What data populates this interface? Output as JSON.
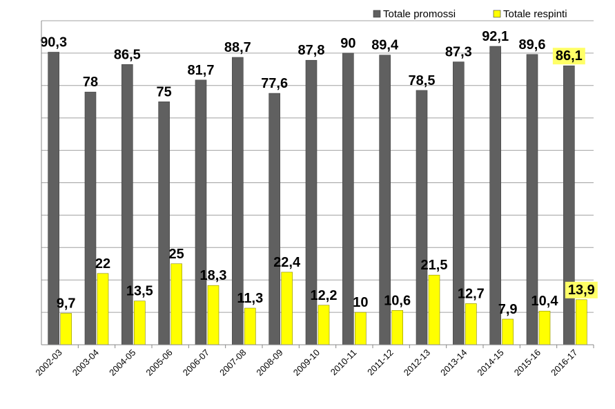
{
  "chart_data": {
    "type": "bar",
    "title": "",
    "xlabel": "",
    "ylabel": "",
    "ylim": [
      0,
      100
    ],
    "grid": true,
    "legend_position": "top-right",
    "categories": [
      "2002-03",
      "2003-04",
      "2004-05",
      "2005-06",
      "2006-07",
      "2007-08",
      "2008-09",
      "2009-10",
      "2010-11",
      "2011-12",
      "2012-13",
      "2013-14",
      "2014-15",
      "2015-16",
      "2016-17"
    ],
    "series": [
      {
        "name": "Totale promossi",
        "color": "#606060",
        "values": [
          90.3,
          78,
          86.5,
          75,
          81.7,
          88.7,
          77.6,
          87.8,
          90,
          89.4,
          78.5,
          87.3,
          92.1,
          89.6,
          86.1
        ],
        "labels": [
          "90,3",
          "78",
          "86,5",
          "75",
          "81,7",
          "88,7",
          "77,6",
          "87,8",
          "90",
          "89,4",
          "78,5",
          "87,3",
          "92,1",
          "89,6",
          "86,1"
        ]
      },
      {
        "name": "Totale respinti",
        "color": "#ffff00",
        "values": [
          9.7,
          22,
          13.5,
          25,
          18.3,
          11.3,
          22.4,
          12.2,
          10,
          10.6,
          21.5,
          12.7,
          7.9,
          10.4,
          13.9
        ],
        "labels": [
          "9,7",
          "22",
          "13,5",
          "25",
          "18,3",
          "11,3",
          "22,4",
          "12,2",
          "10",
          "10,6",
          "21,5",
          "12,7",
          "7,9",
          "10,4",
          "13,9"
        ]
      }
    ],
    "highlight_color": "#ffff66",
    "highlighted_index": 14
  }
}
